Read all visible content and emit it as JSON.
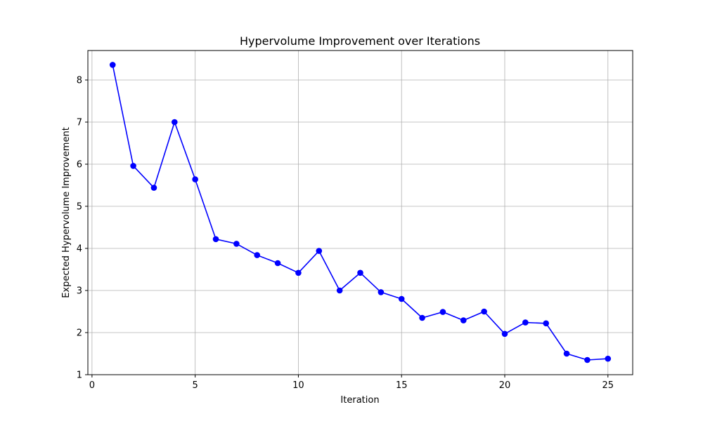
{
  "chart_data": {
    "type": "line",
    "title": "Hypervolume Improvement over Iterations",
    "xlabel": "Iteration",
    "ylabel": "Expected Hypervolume Improvement",
    "x": [
      1,
      2,
      3,
      4,
      5,
      6,
      7,
      8,
      9,
      10,
      11,
      12,
      13,
      14,
      15,
      16,
      17,
      18,
      19,
      20,
      21,
      22,
      23,
      24,
      25
    ],
    "series": [
      {
        "values": [
          8.36,
          5.96,
          5.44,
          7.0,
          5.64,
          4.22,
          4.11,
          3.84,
          3.65,
          3.42,
          3.94,
          3.0,
          3.42,
          2.96,
          2.8,
          2.35,
          2.49,
          2.29,
          2.5,
          1.97,
          2.24,
          2.22,
          1.5,
          1.35,
          1.38
        ],
        "color": "#0000ff",
        "marker": "circle"
      }
    ],
    "xlim": [
      -0.2,
      26.2
    ],
    "ylim": [
      1.0,
      8.7
    ],
    "xticks": [
      0,
      5,
      10,
      15,
      20,
      25
    ],
    "yticks": [
      1,
      2,
      3,
      4,
      5,
      6,
      7,
      8
    ],
    "grid": true,
    "grid_color": "#b0b0b0",
    "axis_color": "#000000"
  }
}
